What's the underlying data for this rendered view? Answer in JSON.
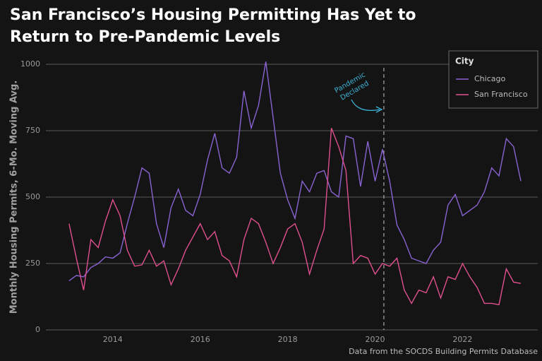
{
  "chart_data": {
    "type": "line",
    "title": "San Francisco’s Housing Permitting Has Yet to Return to Pre-Pandemic Levels",
    "y_label": "Monthly Housing Permits, 6-Mo. Moving Avg.",
    "caption": "Data from the SOCDS Building Permits Database",
    "legend_title": "City",
    "legend": "top-right",
    "grid": true,
    "xlim": [
      2012.47,
      2023.72
    ],
    "xticks": [
      2014,
      2016,
      2018,
      2020,
      2022
    ],
    "ylim": [
      0,
      1000
    ],
    "yticks": [
      0,
      250,
      500,
      750,
      1000
    ],
    "x": [
      2013.0,
      2013.167,
      2013.333,
      2013.5,
      2013.667,
      2013.833,
      2014.0,
      2014.167,
      2014.333,
      2014.5,
      2014.667,
      2014.833,
      2015.0,
      2015.167,
      2015.333,
      2015.5,
      2015.667,
      2015.833,
      2016.0,
      2016.167,
      2016.333,
      2016.5,
      2016.667,
      2016.833,
      2017.0,
      2017.167,
      2017.333,
      2017.5,
      2017.667,
      2017.833,
      2018.0,
      2018.167,
      2018.333,
      2018.5,
      2018.667,
      2018.833,
      2019.0,
      2019.167,
      2019.333,
      2019.5,
      2019.667,
      2019.833,
      2020.0,
      2020.167,
      2020.333,
      2020.5,
      2020.667,
      2020.833,
      2021.0,
      2021.167,
      2021.333,
      2021.5,
      2021.667,
      2021.833,
      2022.0,
      2022.167,
      2022.333,
      2022.5,
      2022.667,
      2022.833,
      2023.0,
      2023.167,
      2023.333
    ],
    "series": [
      {
        "name": "Chicago",
        "color": "#8a63d2",
        "values": [
          185,
          205,
          200,
          235,
          250,
          275,
          270,
          290,
          400,
          500,
          610,
          590,
          400,
          310,
          460,
          530,
          450,
          430,
          510,
          640,
          740,
          610,
          590,
          650,
          900,
          760,
          845,
          1010,
          800,
          590,
          490,
          420,
          560,
          520,
          590,
          600,
          520,
          500,
          730,
          720,
          540,
          710,
          560,
          680,
          560,
          395,
          340,
          270,
          260,
          250,
          300,
          330,
          470,
          510,
          430,
          450,
          470,
          520,
          610,
          580,
          720,
          690,
          560
        ]
      },
      {
        "name": "San Francisco",
        "color": "#e0508f",
        "values": [
          400,
          270,
          150,
          340,
          310,
          410,
          490,
          430,
          300,
          240,
          245,
          300,
          240,
          260,
          170,
          230,
          300,
          350,
          400,
          340,
          370,
          280,
          260,
          200,
          340,
          420,
          400,
          330,
          250,
          310,
          380,
          400,
          330,
          210,
          300,
          380,
          760,
          690,
          600,
          250,
          280,
          270,
          210,
          250,
          240,
          270,
          150,
          100,
          150,
          140,
          200,
          120,
          200,
          190,
          250,
          200,
          160,
          100,
          100,
          95,
          230,
          180,
          175
        ]
      }
    ],
    "annotation": {
      "text": "Pandemic Declared",
      "x": 2020.2,
      "color": "#3bb3d6"
    }
  }
}
